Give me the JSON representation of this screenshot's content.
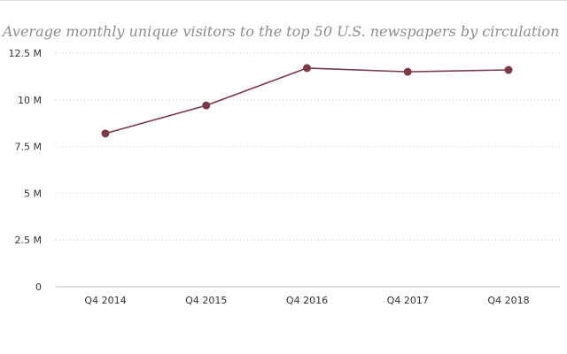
{
  "chart_data": {
    "type": "line",
    "title": "Average monthly unique visitors to the top 50 U.S. newspapers by circulation",
    "xlabel": "",
    "ylabel": "",
    "categories": [
      "Q4 2014",
      "Q4 2015",
      "Q4 2016",
      "Q4 2017",
      "Q4 2018"
    ],
    "series": [
      {
        "values": [
          8.2,
          9.7,
          11.7,
          11.5,
          11.6
        ]
      }
    ],
    "ylim": [
      0,
      12.5
    ],
    "yticks": [
      0,
      2.5,
      5,
      7.5,
      10,
      12.5
    ],
    "ytick_labels": [
      "0",
      "2.5 M",
      "5 M",
      "7.5 M",
      "10 M",
      "12.5 M"
    ],
    "grid": "horizontal-dotted",
    "legend": "none",
    "colors": {
      "line": "#7b3a47",
      "marker": "#7b3a47",
      "grid": "#cfcfcf",
      "axis": "#bbbbbb",
      "title": "#8c8c8c",
      "tick_text": "#333333"
    }
  }
}
